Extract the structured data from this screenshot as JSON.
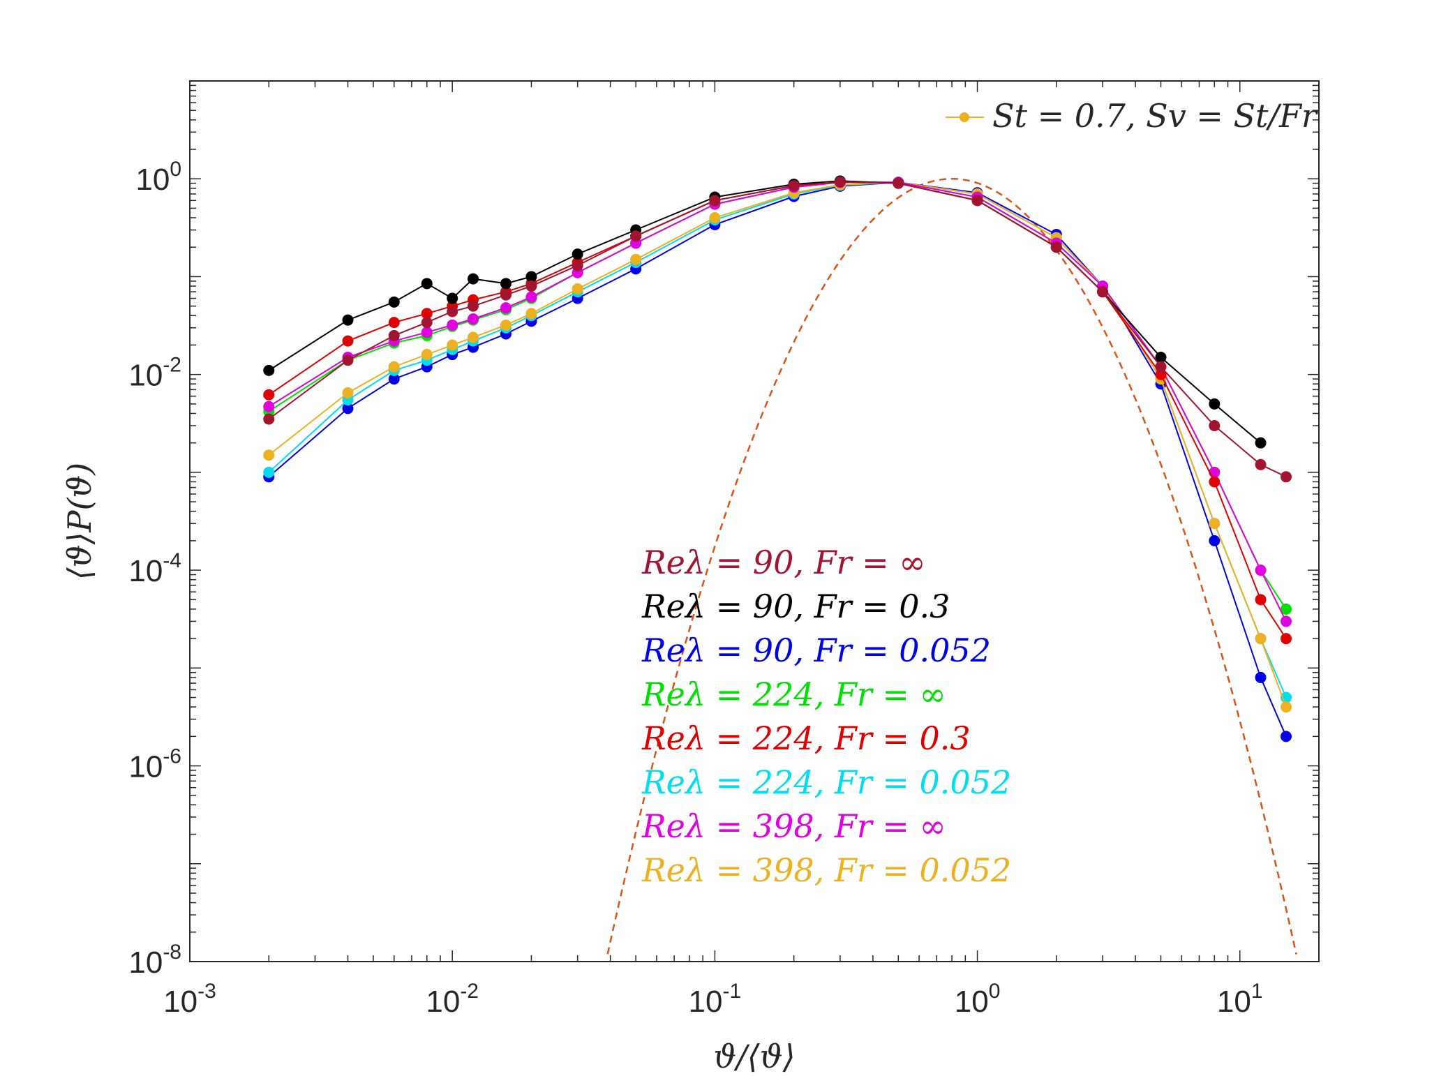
{
  "chart_data": {
    "type": "scatter",
    "xscale": "log",
    "yscale": "log",
    "xlim": [
      0.001,
      20
    ],
    "ylim": [
      1e-08,
      10
    ],
    "xlabel": "ϑ/⟨ϑ⟩",
    "ylabel": "⟨ϑ⟩P(ϑ)",
    "x_ticks": [
      {
        "base": "10",
        "exp": "-3",
        "value": 0.001
      },
      {
        "base": "10",
        "exp": "-2",
        "value": 0.01
      },
      {
        "base": "10",
        "exp": "-1",
        "value": 0.1
      },
      {
        "base": "10",
        "exp": "0",
        "value": 1
      },
      {
        "base": "10",
        "exp": "1",
        "value": 10
      }
    ],
    "y_ticks": [
      {
        "base": "10",
        "exp": "0",
        "value": 1
      },
      {
        "base": "10",
        "exp": "-2",
        "value": 0.01
      },
      {
        "base": "10",
        "exp": "-4",
        "value": 0.0001
      },
      {
        "base": "10",
        "exp": "-6",
        "value": 1e-06
      },
      {
        "base": "10",
        "exp": "-8",
        "value": 1e-08
      }
    ],
    "legend_box": {
      "label": "St = 0.7, Sv = St/Fr",
      "color": "#EDB120",
      "placement": "top-right"
    },
    "reference_curve": {
      "name": "reference PDF",
      "color": "#D95319",
      "style": "dashed",
      "mode": 0.8,
      "sigma": 0.5
    },
    "series": [
      {
        "name": "Reλ = 90, Fr = ∞",
        "color": "#A2142F",
        "x": [
          0.002,
          0.004,
          0.006,
          0.008,
          0.01,
          0.012,
          0.016,
          0.02,
          0.03,
          0.05,
          0.1,
          0.2,
          0.3,
          0.5,
          1,
          2,
          3,
          5,
          8,
          12,
          15
        ],
        "y": [
          0.0035,
          0.014,
          0.025,
          0.034,
          0.044,
          0.05,
          0.065,
          0.08,
          0.13,
          0.26,
          0.6,
          0.85,
          0.93,
          0.9,
          0.6,
          0.2,
          0.07,
          0.012,
          0.003,
          0.0012,
          0.0009
        ]
      },
      {
        "name": "Reλ = 90, Fr = 0.3",
        "color": "#000000",
        "x": [
          0.002,
          0.004,
          0.006,
          0.008,
          0.01,
          0.012,
          0.016,
          0.02,
          0.03,
          0.05,
          0.1,
          0.2,
          0.3,
          0.5,
          1,
          2,
          3,
          5,
          8,
          12
        ],
        "y": [
          0.011,
          0.036,
          0.055,
          0.085,
          0.06,
          0.095,
          0.085,
          0.1,
          0.17,
          0.3,
          0.65,
          0.88,
          0.95,
          0.9,
          0.6,
          0.2,
          0.07,
          0.015,
          0.005,
          0.002
        ]
      },
      {
        "name": "Reλ = 90, Fr = 0.052",
        "color": "#0000E6",
        "x": [
          0.002,
          0.004,
          0.006,
          0.008,
          0.01,
          0.012,
          0.016,
          0.02,
          0.03,
          0.05,
          0.1,
          0.2,
          0.3,
          0.5,
          1,
          2,
          3,
          5,
          8,
          12,
          15
        ],
        "y": [
          0.0009,
          0.0045,
          0.009,
          0.012,
          0.016,
          0.019,
          0.026,
          0.035,
          0.06,
          0.12,
          0.34,
          0.66,
          0.84,
          0.92,
          0.72,
          0.27,
          0.08,
          0.008,
          0.0002,
          8e-06,
          2e-06
        ]
      },
      {
        "name": "Reλ = 224, Fr = ∞",
        "color": "#00E000",
        "x": [
          0.002,
          0.004,
          0.006,
          0.008,
          0.01,
          0.012,
          0.016,
          0.02,
          0.03,
          0.05,
          0.1,
          0.2,
          0.3,
          0.5,
          1,
          2,
          3,
          5,
          8,
          12,
          15
        ],
        "y": [
          0.0042,
          0.014,
          0.021,
          0.025,
          0.031,
          0.036,
          0.046,
          0.06,
          0.11,
          0.22,
          0.55,
          0.82,
          0.92,
          0.92,
          0.65,
          0.22,
          0.08,
          0.012,
          0.001,
          0.0001,
          4e-05
        ]
      },
      {
        "name": "Reλ = 224, Fr = 0.3",
        "color": "#E00000",
        "x": [
          0.002,
          0.004,
          0.006,
          0.008,
          0.01,
          0.012,
          0.016,
          0.02,
          0.03,
          0.05,
          0.1,
          0.2,
          0.3,
          0.5,
          1,
          2,
          3,
          5,
          8,
          12,
          15
        ],
        "y": [
          0.0062,
          0.022,
          0.034,
          0.042,
          0.05,
          0.058,
          0.07,
          0.085,
          0.14,
          0.26,
          0.6,
          0.85,
          0.93,
          0.9,
          0.6,
          0.2,
          0.07,
          0.01,
          0.0008,
          5e-05,
          2e-05
        ]
      },
      {
        "name": "Reλ = 224, Fr = 0.052",
        "color": "#00DDEE",
        "x": [
          0.002,
          0.004,
          0.006,
          0.008,
          0.01,
          0.012,
          0.016,
          0.02,
          0.03,
          0.05,
          0.1,
          0.2,
          0.3,
          0.5,
          1,
          2,
          3,
          5,
          8,
          12,
          15
        ],
        "y": [
          0.001,
          0.0055,
          0.011,
          0.014,
          0.018,
          0.022,
          0.03,
          0.04,
          0.07,
          0.14,
          0.38,
          0.7,
          0.86,
          0.92,
          0.7,
          0.25,
          0.08,
          0.009,
          0.0003,
          2e-05,
          5e-06
        ]
      },
      {
        "name": "Reλ = 398, Fr = ∞",
        "color": "#E000E0",
        "x": [
          0.002,
          0.004,
          0.006,
          0.008,
          0.01,
          0.012,
          0.016,
          0.02,
          0.03,
          0.05,
          0.1,
          0.2,
          0.3,
          0.5,
          1,
          2,
          3,
          5,
          8,
          12,
          15
        ],
        "y": [
          0.0047,
          0.015,
          0.022,
          0.027,
          0.032,
          0.037,
          0.048,
          0.062,
          0.11,
          0.22,
          0.55,
          0.82,
          0.92,
          0.92,
          0.65,
          0.22,
          0.08,
          0.012,
          0.001,
          0.0001,
          3e-05
        ]
      },
      {
        "name": "Reλ = 398, Fr = 0.052",
        "color": "#EDB120",
        "x": [
          0.002,
          0.004,
          0.006,
          0.008,
          0.01,
          0.012,
          0.016,
          0.02,
          0.03,
          0.05,
          0.1,
          0.2,
          0.3,
          0.5,
          1,
          2,
          3,
          5,
          8,
          12,
          15
        ],
        "y": [
          0.0015,
          0.0065,
          0.012,
          0.016,
          0.02,
          0.024,
          0.032,
          0.042,
          0.075,
          0.15,
          0.4,
          0.72,
          0.87,
          0.92,
          0.7,
          0.25,
          0.08,
          0.009,
          0.0003,
          2e-05,
          4e-06
        ]
      }
    ],
    "annotations": [
      {
        "text": "Reλ = 90, Fr = ∞",
        "color": "#A2142F"
      },
      {
        "text": "Reλ = 90, Fr = 0.3",
        "color": "#000000"
      },
      {
        "text": "Reλ = 90, Fr = 0.052",
        "color": "#0000E6"
      },
      {
        "text": "Reλ = 224, Fr = ∞",
        "color": "#00E000"
      },
      {
        "text": "Reλ = 224, Fr = 0.3",
        "color": "#E00000"
      },
      {
        "text": "Reλ = 224, Fr = 0.052",
        "color": "#00DDEE"
      },
      {
        "text": "Reλ = 398, Fr = ∞",
        "color": "#E000E0"
      },
      {
        "text": "Reλ = 398, Fr = 0.052",
        "color": "#EDB120"
      }
    ]
  }
}
